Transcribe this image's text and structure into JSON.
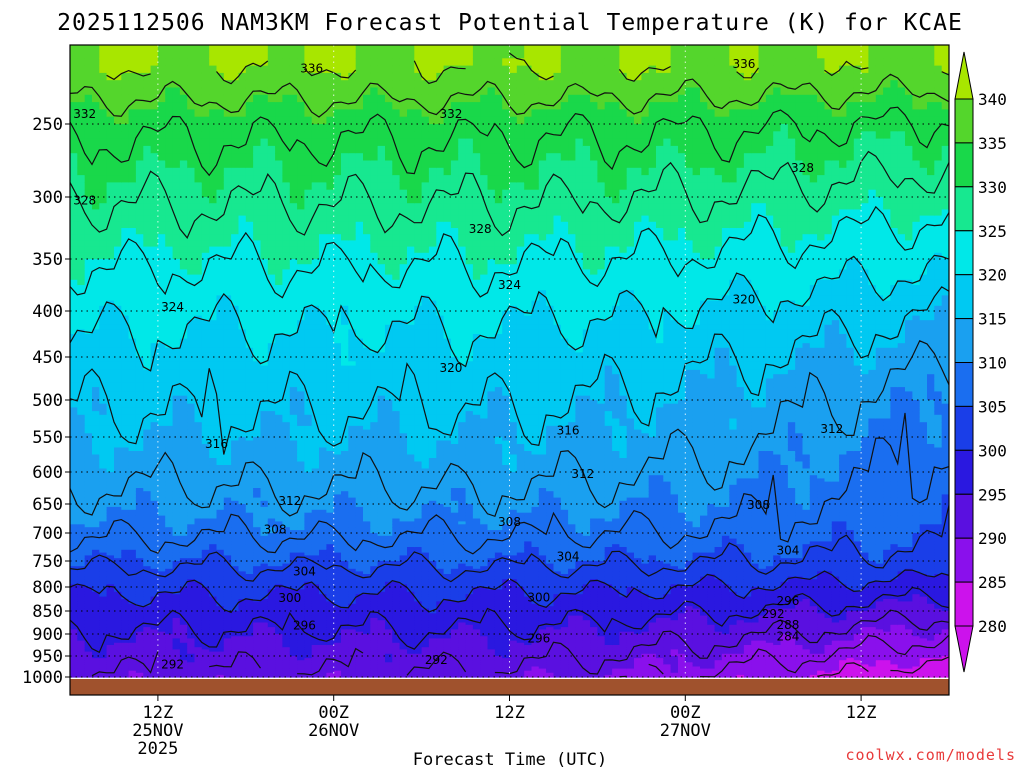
{
  "title": "2025112506 NAM3KM Forecast Potential Temperature (K) for KCAE",
  "xlabel": "Forecast Time (UTC)",
  "credit": "coolwx.com/models",
  "chart_data": {
    "type": "contour",
    "title": "2025112506 NAM3KM Forecast Potential Temperature (K) for KCAE",
    "xlabel": "Forecast Time (UTC)",
    "ylabel": "",
    "y_ticks": [
      250,
      300,
      350,
      400,
      450,
      500,
      550,
      600,
      650,
      700,
      750,
      800,
      850,
      900,
      950,
      1000
    ],
    "y_tick_labels": [
      "250",
      "300",
      "350",
      "400",
      "450",
      "500",
      "550",
      "600",
      "650",
      "700",
      "750",
      "800",
      "850",
      "900",
      "950",
      "1000"
    ],
    "ylim": [
      200,
      1000
    ],
    "x_ticks": [
      {
        "label": "12Z",
        "sub1": "25NOV",
        "sub2": "2025",
        "hour": 6
      },
      {
        "label": "00Z",
        "sub1": "26NOV",
        "sub2": "",
        "hour": 18
      },
      {
        "label": "12Z",
        "sub1": "",
        "sub2": "",
        "hour": 30
      },
      {
        "label": "00Z",
        "sub1": "27NOV",
        "sub2": "",
        "hour": 42
      },
      {
        "label": "12Z",
        "sub1": "",
        "sub2": "",
        "hour": 54
      }
    ],
    "xlim_hours": [
      0,
      60
    ],
    "colorbar_labels": [
      "340",
      "335",
      "330",
      "325",
      "320",
      "315",
      "310",
      "305",
      "300",
      "295",
      "290",
      "285",
      "280"
    ],
    "colorbar_colors": [
      "#a8e600",
      "#54d62c",
      "#19d84a",
      "#17e890",
      "#00e8e8",
      "#00c9f2",
      "#1aa0f0",
      "#1a6ef0",
      "#1a3ee8",
      "#2a18e0",
      "#5a10e0",
      "#8a10ec",
      "#cc12ec"
    ],
    "ground_color": "#a0522d",
    "contour_interval": 4,
    "contour_labels": [
      {
        "value": "336",
        "hour": 16.5,
        "p": 212
      },
      {
        "value": "336",
        "hour": 46,
        "p": 209
      },
      {
        "value": "332",
        "hour": 1,
        "p": 243
      },
      {
        "value": "332",
        "hour": 26,
        "p": 243
      },
      {
        "value": "328",
        "hour": 1,
        "p": 303
      },
      {
        "value": "328",
        "hour": 28,
        "p": 326
      },
      {
        "value": "328",
        "hour": 50,
        "p": 280
      },
      {
        "value": "324",
        "hour": 7,
        "p": 396
      },
      {
        "value": "324",
        "hour": 30,
        "p": 375
      },
      {
        "value": "320",
        "hour": 26,
        "p": 463
      },
      {
        "value": "320",
        "hour": 46,
        "p": 389
      },
      {
        "value": "316",
        "hour": 10,
        "p": 560
      },
      {
        "value": "316",
        "hour": 34,
        "p": 541
      },
      {
        "value": "312",
        "hour": 15,
        "p": 645
      },
      {
        "value": "312",
        "hour": 35,
        "p": 603
      },
      {
        "value": "312",
        "hour": 52,
        "p": 539
      },
      {
        "value": "308",
        "hour": 14,
        "p": 694
      },
      {
        "value": "308",
        "hour": 30,
        "p": 681
      },
      {
        "value": "308",
        "hour": 47,
        "p": 652
      },
      {
        "value": "304",
        "hour": 16,
        "p": 770
      },
      {
        "value": "304",
        "hour": 34,
        "p": 742
      },
      {
        "value": "304",
        "hour": 49,
        "p": 731
      },
      {
        "value": "300",
        "hour": 15,
        "p": 823
      },
      {
        "value": "300",
        "hour": 32,
        "p": 822
      },
      {
        "value": "296",
        "hour": 16,
        "p": 882
      },
      {
        "value": "296",
        "hour": 32,
        "p": 910
      },
      {
        "value": "296",
        "hour": 49,
        "p": 829
      },
      {
        "value": "292",
        "hour": 25,
        "p": 960
      },
      {
        "value": "292",
        "hour": 7,
        "p": 970
      },
      {
        "value": "292",
        "hour": 48,
        "p": 857
      },
      {
        "value": "288",
        "hour": 49,
        "p": 880
      },
      {
        "value": "284",
        "hour": 49,
        "p": 906
      }
    ]
  }
}
